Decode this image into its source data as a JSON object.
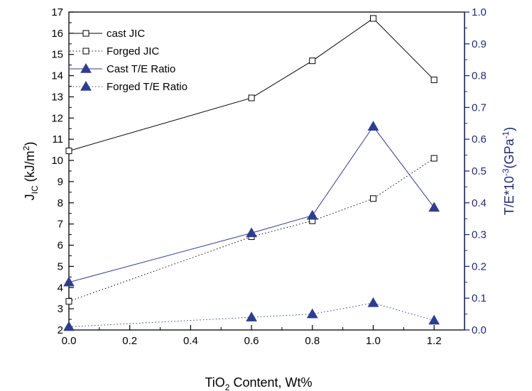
{
  "chart_data": {
    "type": "line",
    "x_axis": {
      "label_pre": "TiO",
      "label_sub": "2",
      "label_post": " Content, Wt%",
      "range": [
        0.0,
        1.3
      ],
      "ticks": [
        0.0,
        0.2,
        0.4,
        0.6,
        0.8,
        1.0,
        1.2
      ],
      "tick_labels": [
        "0.0",
        "0.2",
        "0.4",
        "0.6",
        "0.8",
        "1.0",
        "1.2"
      ]
    },
    "y_axis_left": {
      "label_main": "J",
      "label_sub": "IC",
      "label_unit_pre": " (kJ/m",
      "label_unit_sup": "2",
      "label_unit_post": ")",
      "range": [
        2,
        17
      ],
      "ticks": [
        2,
        3,
        4,
        5,
        6,
        7,
        8,
        9,
        10,
        11,
        12,
        13,
        14,
        15,
        16,
        17
      ],
      "tick_labels": [
        "2",
        "3",
        "4",
        "5",
        "6",
        "7",
        "8",
        "9",
        "10",
        "11",
        "12",
        "13",
        "14",
        "15",
        "16",
        "17"
      ],
      "color": "#000000"
    },
    "y_axis_right": {
      "label_main": "T/E*10",
      "label_sup": "-3",
      "label_mid": "(GPa",
      "label_sup2": "-1",
      "label_end": ")",
      "range": [
        0.0,
        1.0
      ],
      "ticks": [
        0.0,
        0.1,
        0.2,
        0.3,
        0.4,
        0.5,
        0.6,
        0.7,
        0.8,
        0.9,
        1.0
      ],
      "tick_labels": [
        "0.0",
        "0.1",
        "0.2",
        "0.3",
        "0.4",
        "0.5",
        "0.6",
        "0.7",
        "0.8",
        "0.9",
        "1.0"
      ],
      "color": "#1f2a7a"
    },
    "series": [
      {
        "name": "cast JIC",
        "axis": "left",
        "line": "solid",
        "marker": "open-square",
        "color": "#000000",
        "x": [
          0.0,
          0.6,
          0.8,
          1.0,
          1.2
        ],
        "y": [
          10.45,
          12.95,
          14.7,
          16.7,
          13.8
        ]
      },
      {
        "name": "Forged JIC",
        "axis": "left",
        "line": "dotted",
        "marker": "open-square",
        "color": "#000000",
        "x": [
          0.0,
          0.6,
          0.8,
          1.0,
          1.2
        ],
        "y": [
          3.35,
          6.4,
          7.15,
          8.2,
          10.1
        ]
      },
      {
        "name": "Cast T/E Ratio",
        "axis": "right",
        "line": "solid",
        "marker": "filled-triangle",
        "color": "#2e3d8f",
        "x": [
          0.0,
          0.6,
          0.8,
          1.0,
          1.2
        ],
        "y": [
          0.15,
          0.305,
          0.36,
          0.64,
          0.385
        ]
      },
      {
        "name": "Forged T/E Ratio",
        "axis": "right",
        "line": "dotted",
        "marker": "filled-triangle",
        "color": "#2e3d8f",
        "x": [
          0.0,
          0.6,
          0.8,
          1.0,
          1.2
        ],
        "y": [
          0.01,
          0.04,
          0.05,
          0.085,
          0.03
        ]
      }
    ],
    "legend": {
      "placement": "top-left",
      "entries": [
        "cast JIC",
        "Forged JIC",
        "Cast T/E Ratio",
        "Forged T/E Ratio"
      ]
    },
    "grid": false
  }
}
